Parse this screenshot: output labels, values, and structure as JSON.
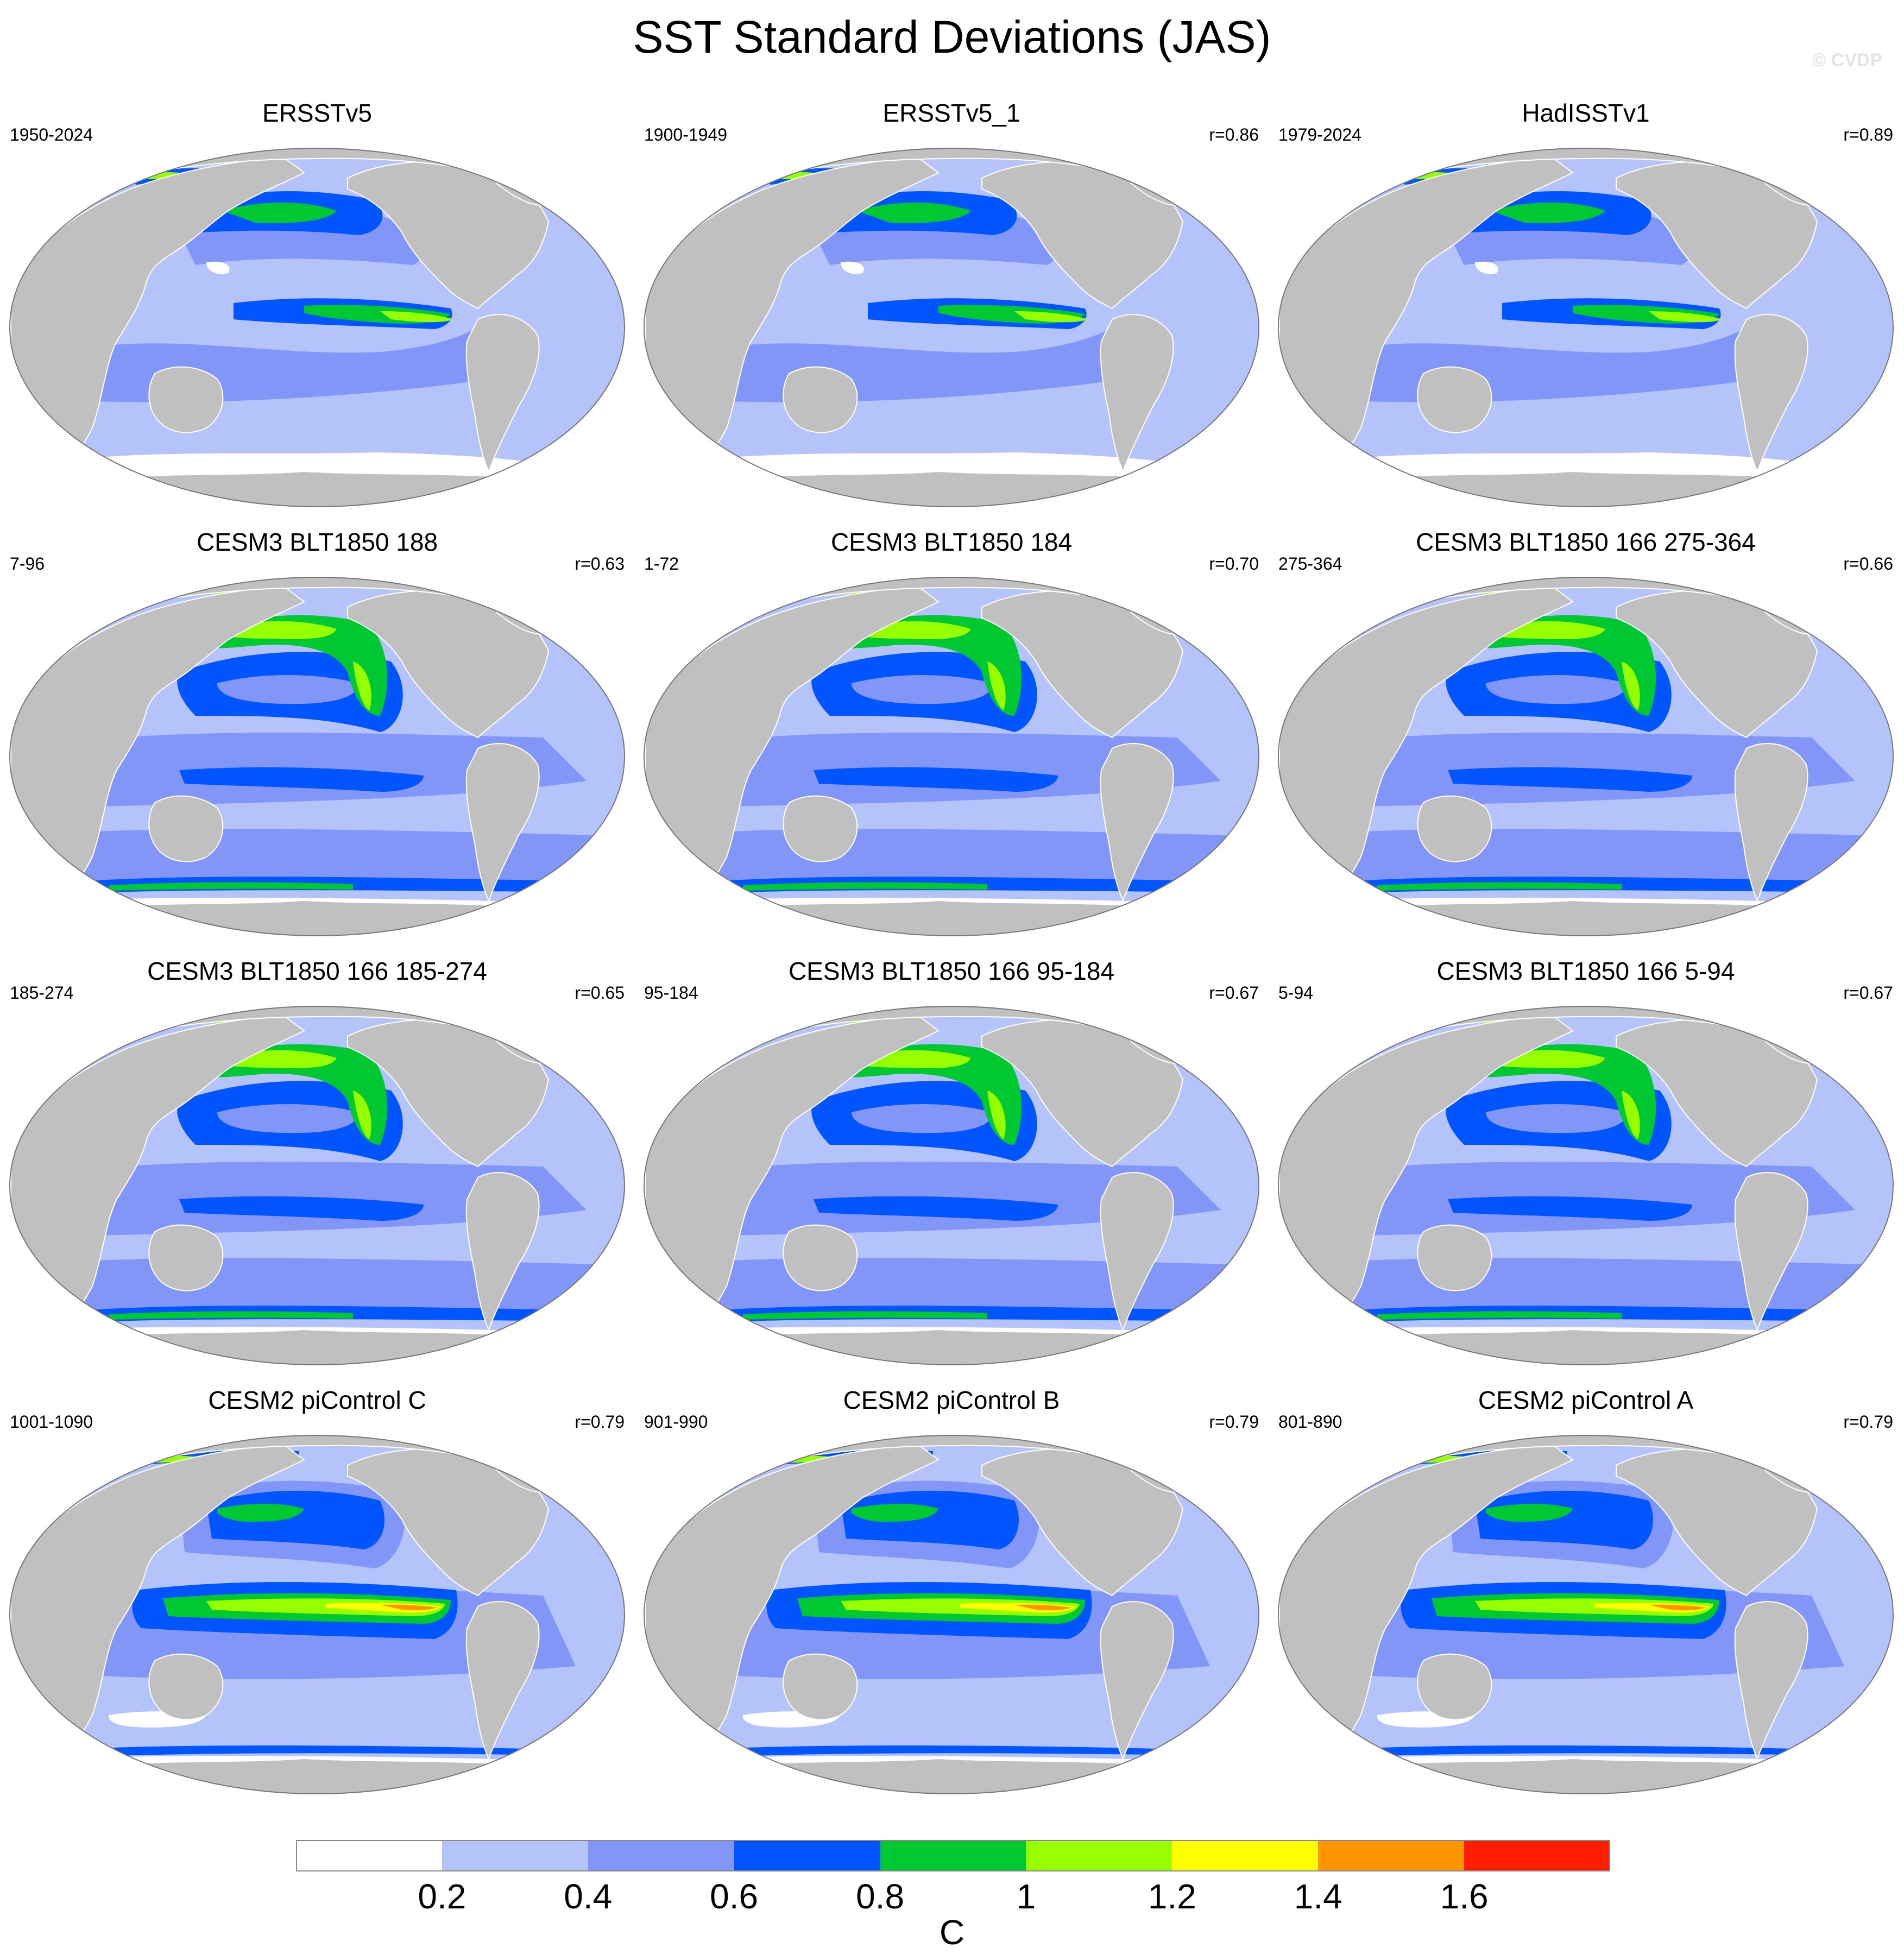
{
  "title": "SST Standard Deviations (JAS)",
  "watermark": "© CVDP",
  "colors": {
    "land": "#c0c0c0",
    "ocean_base": "#b4c3fa",
    "levels": [
      "#ffffff",
      "#b4c3fa",
      "#8296f8",
      "#0055ff",
      "#00c832",
      "#96ff00",
      "#ffff00",
      "#ff9600",
      "#ff1e00"
    ]
  },
  "panels": [
    {
      "title": "ERSSTv5",
      "period": "1950-2024",
      "corr": "",
      "style": "obs"
    },
    {
      "title": "ERSSTv5_1",
      "period": "1900-1949",
      "corr": "r=0.86",
      "style": "obs"
    },
    {
      "title": "HadISSTv1",
      "period": "1979-2024",
      "corr": "r=0.89",
      "style": "obs"
    },
    {
      "title": "CESM3 BLT1850 188",
      "period": "7-96",
      "corr": "r=0.63",
      "style": "cesm3"
    },
    {
      "title": "CESM3 BLT1850 184",
      "period": "1-72",
      "corr": "r=0.70",
      "style": "cesm3"
    },
    {
      "title": "CESM3 BLT1850 166 275-364",
      "period": "275-364",
      "corr": "r=0.66",
      "style": "cesm3"
    },
    {
      "title": "CESM3 BLT1850 166 185-274",
      "period": "185-274",
      "corr": "r=0.65",
      "style": "cesm3"
    },
    {
      "title": "CESM3 BLT1850 166 95-184",
      "period": "95-184",
      "corr": "r=0.67",
      "style": "cesm3"
    },
    {
      "title": "CESM3 BLT1850 166 5-94",
      "period": "5-94",
      "corr": "r=0.67",
      "style": "cesm3"
    },
    {
      "title": "CESM2 piControl C",
      "period": "1001-1090",
      "corr": "r=0.79",
      "style": "cesm2"
    },
    {
      "title": "CESM2 piControl B",
      "period": "901-990",
      "corr": "r=0.79",
      "style": "cesm2"
    },
    {
      "title": "CESM2 piControl A",
      "period": "801-890",
      "corr": "r=0.79",
      "style": "cesm2"
    }
  ],
  "colorbar": {
    "ticks": [
      "0.2",
      "0.4",
      "0.6",
      "0.8",
      "1",
      "1.2",
      "1.4",
      "1.6"
    ],
    "unit": "C"
  }
}
